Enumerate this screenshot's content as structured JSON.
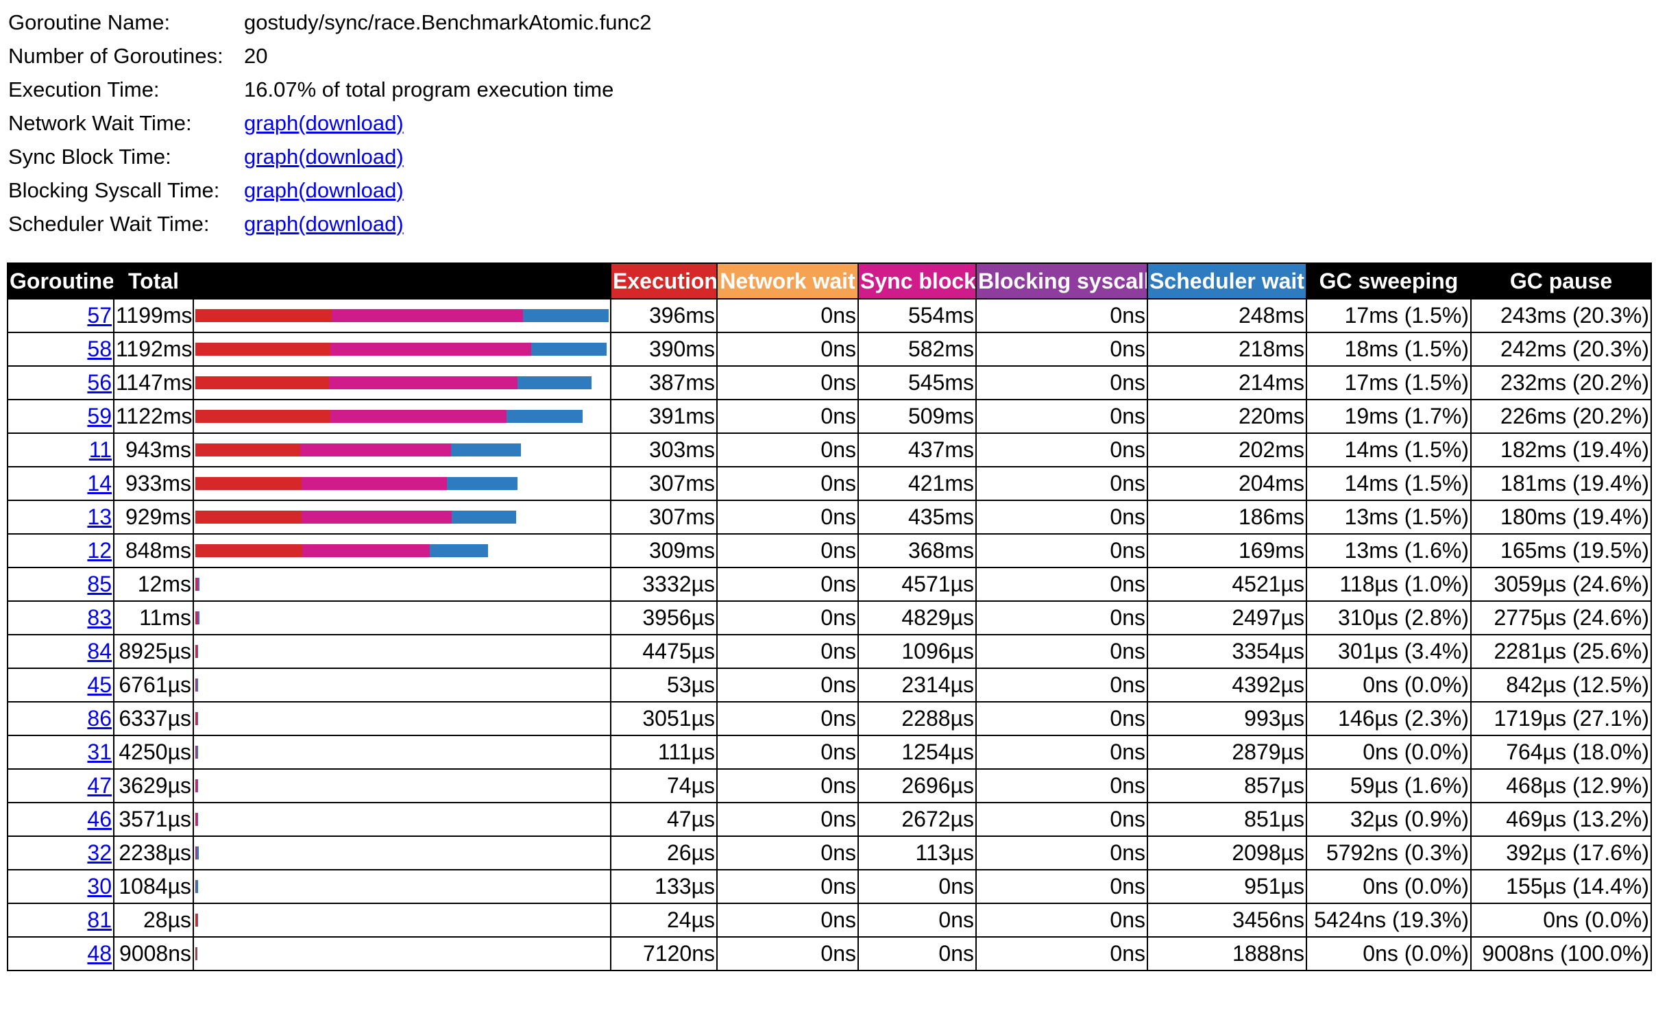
{
  "colors": {
    "execution": "#d62828",
    "network": "#f5a352",
    "sync": "#d01c8b",
    "syscall": "#8e3c9e",
    "scheduler": "#2f7bbf",
    "link": "#0000ee"
  },
  "info": [
    {
      "label": "Goroutine Name:",
      "value": "gostudy/sync/race.BenchmarkAtomic.func2"
    },
    {
      "label": "Number of Goroutines:",
      "value": "20"
    },
    {
      "label": "Execution Time:",
      "value": "16.07% of total program execution time"
    },
    {
      "label": "Network Wait Time:",
      "graph": "graph",
      "download": "(download)"
    },
    {
      "label": "Sync Block Time:",
      "graph": "graph",
      "download": "(download)"
    },
    {
      "label": "Blocking Syscall Time:",
      "graph": "graph",
      "download": "(download)"
    },
    {
      "label": "Scheduler Wait Time:",
      "graph": "graph",
      "download": "(download)"
    }
  ],
  "table": {
    "headers": [
      "Goroutine",
      "Total",
      "",
      "Execution",
      "Network wait",
      "Sync block",
      "Blocking syscall",
      "Scheduler wait",
      "GC sweeping",
      "GC pause"
    ],
    "rows": [
      {
        "id": "57",
        "total": "1199ms",
        "exec": "396ms",
        "net": "0ns",
        "sync": "554ms",
        "syscall": "0ns",
        "sched": "248ms",
        "sweep": "17ms (1.5%)",
        "pause": "243ms (20.3%)",
        "bar": [
          0.3303,
          0,
          0.4621,
          0,
          0.2068
        ]
      },
      {
        "id": "58",
        "total": "1192ms",
        "exec": "390ms",
        "net": "0ns",
        "sync": "582ms",
        "syscall": "0ns",
        "sched": "218ms",
        "sweep": "18ms (1.5%)",
        "pause": "242ms (20.3%)",
        "bar": [
          0.3272,
          0,
          0.4883,
          0,
          0.1829
        ]
      },
      {
        "id": "56",
        "total": "1147ms",
        "exec": "387ms",
        "net": "0ns",
        "sync": "545ms",
        "syscall": "0ns",
        "sched": "214ms",
        "sweep": "17ms (1.5%)",
        "pause": "232ms (20.2%)",
        "bar": [
          0.3374,
          0,
          0.4752,
          0,
          0.1866
        ]
      },
      {
        "id": "59",
        "total": "1122ms",
        "exec": "391ms",
        "net": "0ns",
        "sync": "509ms",
        "syscall": "0ns",
        "sched": "220ms",
        "sweep": "19ms (1.7%)",
        "pause": "226ms (20.2%)",
        "bar": [
          0.3485,
          0,
          0.4537,
          0,
          0.1961
        ]
      },
      {
        "id": "11",
        "total": "943ms",
        "exec": "303ms",
        "net": "0ns",
        "sync": "437ms",
        "syscall": "0ns",
        "sched": "202ms",
        "sweep": "14ms (1.5%)",
        "pause": "182ms (19.4%)",
        "bar": [
          0.3213,
          0,
          0.4634,
          0,
          0.2142
        ]
      },
      {
        "id": "14",
        "total": "933ms",
        "exec": "307ms",
        "net": "0ns",
        "sync": "421ms",
        "syscall": "0ns",
        "sched": "204ms",
        "sweep": "14ms (1.5%)",
        "pause": "181ms (19.4%)",
        "bar": [
          0.329,
          0,
          0.4512,
          0,
          0.2186
        ]
      },
      {
        "id": "13",
        "total": "929ms",
        "exec": "307ms",
        "net": "0ns",
        "sync": "435ms",
        "syscall": "0ns",
        "sched": "186ms",
        "sweep": "13ms (1.5%)",
        "pause": "180ms (19.4%)",
        "bar": [
          0.3305,
          0,
          0.4682,
          0,
          0.2002
        ]
      },
      {
        "id": "12",
        "total": "848ms",
        "exec": "309ms",
        "net": "0ns",
        "sync": "368ms",
        "syscall": "0ns",
        "sched": "169ms",
        "sweep": "13ms (1.6%)",
        "pause": "165ms (19.5%)",
        "bar": [
          0.3644,
          0,
          0.434,
          0,
          0.1993
        ]
      },
      {
        "id": "85",
        "total": "12ms",
        "exec": "3332µs",
        "net": "0ns",
        "sync": "4571µs",
        "syscall": "0ns",
        "sched": "4521µs",
        "sweep": "118µs (1.0%)",
        "pause": "3059µs (24.6%)",
        "bar": [
          0.2777,
          0,
          0.3809,
          0,
          0.3768
        ]
      },
      {
        "id": "83",
        "total": "11ms",
        "exec": "3956µs",
        "net": "0ns",
        "sync": "4829µs",
        "syscall": "0ns",
        "sched": "2497µs",
        "sweep": "310µs (2.8%)",
        "pause": "2775µs (24.6%)",
        "bar": [
          0.3596,
          0,
          0.439,
          0,
          0.227
        ]
      },
      {
        "id": "84",
        "total": "8925µs",
        "exec": "4475µs",
        "net": "0ns",
        "sync": "1096µs",
        "syscall": "0ns",
        "sched": "3354µs",
        "sweep": "301µs (3.4%)",
        "pause": "2281µs (25.6%)",
        "bar": [
          0.5014,
          0,
          0.1228,
          0,
          0.3758
        ]
      },
      {
        "id": "45",
        "total": "6761µs",
        "exec": "53µs",
        "net": "0ns",
        "sync": "2314µs",
        "syscall": "0ns",
        "sched": "4392µs",
        "sweep": "0ns (0.0%)",
        "pause": "842µs (12.5%)",
        "bar": [
          0.0078,
          0,
          0.3423,
          0,
          0.6496
        ]
      },
      {
        "id": "86",
        "total": "6337µs",
        "exec": "3051µs",
        "net": "0ns",
        "sync": "2288µs",
        "syscall": "0ns",
        "sched": "993µs",
        "sweep": "146µs (2.3%)",
        "pause": "1719µs (27.1%)",
        "bar": [
          0.4815,
          0,
          0.3611,
          0,
          0.1567
        ]
      },
      {
        "id": "31",
        "total": "4250µs",
        "exec": "111µs",
        "net": "0ns",
        "sync": "1254µs",
        "syscall": "0ns",
        "sched": "2879µs",
        "sweep": "0ns (0.0%)",
        "pause": "764µs (18.0%)",
        "bar": [
          0.0261,
          0,
          0.2951,
          0,
          0.6774
        ]
      },
      {
        "id": "47",
        "total": "3629µs",
        "exec": "74µs",
        "net": "0ns",
        "sync": "2696µs",
        "syscall": "0ns",
        "sched": "857µs",
        "sweep": "59µs (1.6%)",
        "pause": "468µs (12.9%)",
        "bar": [
          0.0204,
          0,
          0.7429,
          0,
          0.2362
        ]
      },
      {
        "id": "46",
        "total": "3571µs",
        "exec": "47µs",
        "net": "0ns",
        "sync": "2672µs",
        "syscall": "0ns",
        "sched": "851µs",
        "sweep": "32µs (0.9%)",
        "pause": "469µs (13.2%)",
        "bar": [
          0.0132,
          0,
          0.7482,
          0,
          0.2383
        ]
      },
      {
        "id": "32",
        "total": "2238µs",
        "exec": "26µs",
        "net": "0ns",
        "sync": "113µs",
        "syscall": "0ns",
        "sched": "2098µs",
        "sweep": "5792ns (0.3%)",
        "pause": "392µs (17.6%)",
        "bar": [
          0.0116,
          0,
          0.0505,
          0,
          0.9374
        ]
      },
      {
        "id": "30",
        "total": "1084µs",
        "exec": "133µs",
        "net": "0ns",
        "sync": "0ns",
        "syscall": "0ns",
        "sched": "951µs",
        "sweep": "0ns (0.0%)",
        "pause": "155µs (14.4%)",
        "bar": [
          0.1227,
          0,
          0,
          0,
          0.8773
        ]
      },
      {
        "id": "81",
        "total": "28µs",
        "exec": "24µs",
        "net": "0ns",
        "sync": "0ns",
        "syscall": "0ns",
        "sched": "3456ns",
        "sweep": "5424ns (19.3%)",
        "pause": "0ns (0.0%)",
        "bar": [
          0.8714,
          0,
          0,
          0,
          0.1286
        ]
      },
      {
        "id": "48",
        "total": "9008ns",
        "exec": "7120ns",
        "net": "0ns",
        "sync": "0ns",
        "syscall": "0ns",
        "sched": "1888ns",
        "sweep": "0ns (0.0%)",
        "pause": "9008ns (100.0%)",
        "bar": [
          0.7904,
          0,
          0,
          0,
          0.2096
        ]
      }
    ],
    "bar_scale_ms": [
      1199,
      1192,
      1147,
      1122,
      943,
      933,
      929,
      848,
      12,
      11,
      8.925,
      6.761,
      6.337,
      4.25,
      3.629,
      3.571,
      2.238,
      1.084,
      0.028,
      0.009008
    ]
  }
}
